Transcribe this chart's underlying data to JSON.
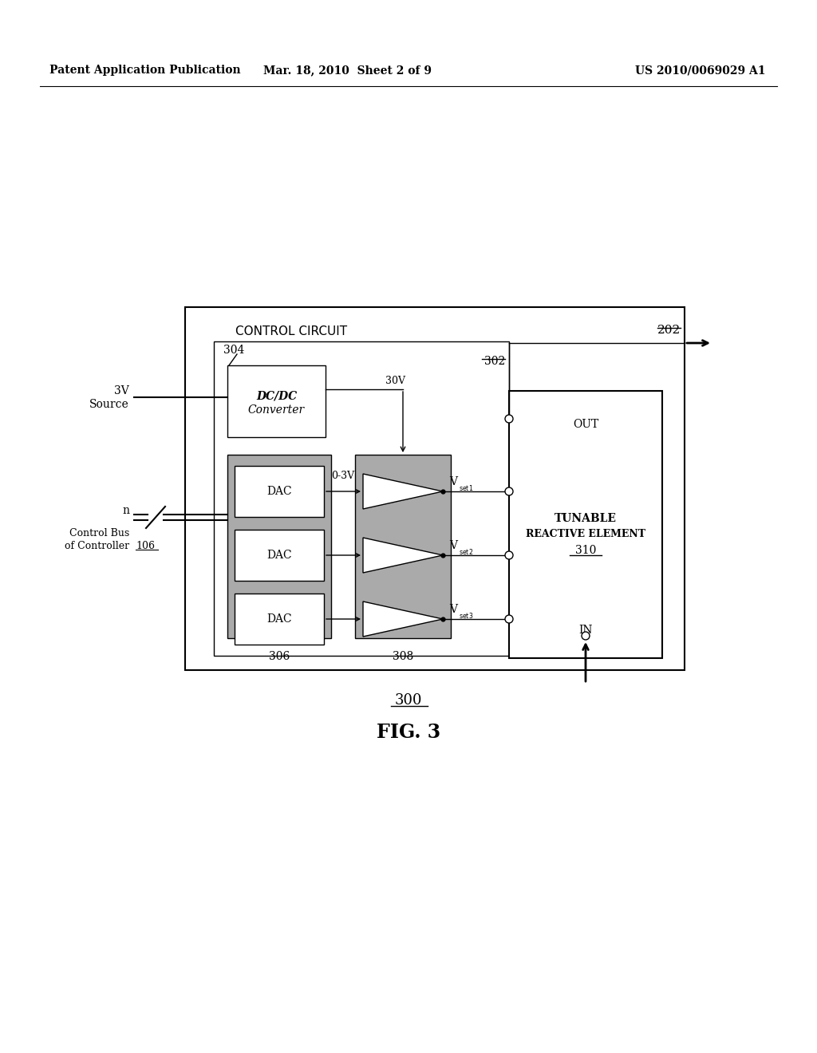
{
  "header_left": "Patent Application Publication",
  "header_mid": "Mar. 18, 2010  Sheet 2 of 9",
  "header_right": "US 2010/0069029 A1",
  "fig_label": "FIG. 3",
  "fig_number": "300",
  "bg_color": "#ffffff",
  "gray_fill": "#aaaaaa",
  "white_fill": "#ffffff",
  "black": "#000000"
}
